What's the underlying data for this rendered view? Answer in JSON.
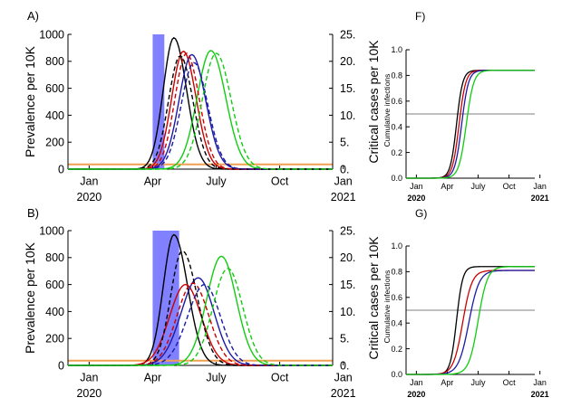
{
  "chart_data": [
    {
      "id": "A",
      "type": "line",
      "panel_label": "A)",
      "ylabel": "Prevalence per 10K",
      "y2label": "Critical cases per 10K",
      "ylim": [
        0,
        1000
      ],
      "y2lim": [
        0,
        25
      ],
      "yticks": [
        "0",
        "200",
        "400",
        "600",
        "800",
        "1000"
      ],
      "y2ticks": [
        "0.",
        "5.",
        "10.",
        "15.",
        "20.",
        "25."
      ],
      "xlim": [
        0,
        12.5
      ],
      "xticks": [
        {
          "x": 1,
          "label": "Jan"
        },
        {
          "x": 4,
          "label": "Apr"
        },
        {
          "x": 7,
          "label": "July"
        },
        {
          "x": 10,
          "label": "Oct"
        },
        {
          "x": 13,
          "label": "Jan"
        }
      ],
      "year_labels": [
        {
          "x": 1,
          "label": "2020"
        },
        {
          "x": 13,
          "label": "2021"
        }
      ],
      "intervention": [
        4.0,
        4.55
      ],
      "capacity_line": 35,
      "series": [
        {
          "name": "black solid",
          "color": "#000000",
          "dash": false,
          "peak_x": 5.0,
          "peak": 975,
          "rise": 0.5,
          "fall": 0.6
        },
        {
          "name": "red solid",
          "color": "#cc0000",
          "dash": false,
          "peak_x": 5.45,
          "peak": 875,
          "rise": 0.55,
          "fall": 0.6
        },
        {
          "name": "blue solid",
          "color": "#1a1aa6",
          "dash": false,
          "peak_x": 5.85,
          "peak": 850,
          "rise": 0.6,
          "fall": 0.65
        },
        {
          "name": "green solid",
          "color": "#11cc11",
          "dash": false,
          "peak_x": 6.75,
          "peak": 880,
          "rise": 0.65,
          "fall": 0.7
        },
        {
          "name": "black dashed",
          "color": "#000000",
          "dash": true,
          "peak_x": 5.3,
          "peak": 840,
          "rise": 0.55,
          "fall": 0.6
        },
        {
          "name": "red dashed",
          "color": "#cc0000",
          "dash": true,
          "peak_x": 5.6,
          "peak": 860,
          "rise": 0.55,
          "fall": 0.6
        },
        {
          "name": "blue dashed",
          "color": "#1a1aa6",
          "dash": true,
          "peak_x": 5.95,
          "peak": 790,
          "rise": 0.6,
          "fall": 0.65
        },
        {
          "name": "green dashed",
          "color": "#11cc11",
          "dash": true,
          "peak_x": 7.0,
          "peak": 860,
          "rise": 0.65,
          "fall": 0.7
        }
      ]
    },
    {
      "id": "B",
      "type": "line",
      "panel_label": "B)",
      "ylabel": "Prevalence per 10K",
      "y2label": "Critical cases per 10K",
      "ylim": [
        0,
        1000
      ],
      "y2lim": [
        0,
        25
      ],
      "yticks": [
        "0",
        "200",
        "400",
        "600",
        "800",
        "1000"
      ],
      "y2ticks": [
        "0.",
        "5.",
        "10.",
        "15.",
        "20.",
        "25."
      ],
      "xlim": [
        0,
        12.5
      ],
      "xticks": [
        {
          "x": 1,
          "label": "Jan"
        },
        {
          "x": 4,
          "label": "Apr"
        },
        {
          "x": 7,
          "label": "July"
        },
        {
          "x": 10,
          "label": "Oct"
        },
        {
          "x": 13,
          "label": "Jan"
        }
      ],
      "year_labels": [
        {
          "x": 1,
          "label": "2020"
        },
        {
          "x": 13,
          "label": "2021"
        }
      ],
      "intervention": [
        4.0,
        5.25
      ],
      "capacity_line": 35,
      "series": [
        {
          "name": "black solid",
          "color": "#000000",
          "dash": false,
          "peak_x": 5.0,
          "peak": 970,
          "rise": 0.5,
          "fall": 0.65
        },
        {
          "name": "red solid",
          "color": "#cc0000",
          "dash": false,
          "peak_x": 5.55,
          "peak": 600,
          "rise": 0.75,
          "fall": 0.75
        },
        {
          "name": "blue solid",
          "color": "#1a1aa6",
          "dash": false,
          "peak_x": 6.15,
          "peak": 650,
          "rise": 0.8,
          "fall": 0.75
        },
        {
          "name": "green solid",
          "color": "#11cc11",
          "dash": false,
          "peak_x": 7.25,
          "peak": 810,
          "rise": 0.7,
          "fall": 0.7
        },
        {
          "name": "black dashed",
          "color": "#000000",
          "dash": true,
          "peak_x": 5.4,
          "peak": 850,
          "rise": 0.55,
          "fall": 0.7
        },
        {
          "name": "red dashed",
          "color": "#cc0000",
          "dash": true,
          "peak_x": 5.9,
          "peak": 610,
          "rise": 0.75,
          "fall": 0.75
        },
        {
          "name": "blue dashed",
          "color": "#1a1aa6",
          "dash": true,
          "peak_x": 6.45,
          "peak": 600,
          "rise": 0.8,
          "fall": 0.75
        },
        {
          "name": "green dashed",
          "color": "#11cc11",
          "dash": true,
          "peak_x": 7.55,
          "peak": 720,
          "rise": 0.7,
          "fall": 0.7
        }
      ]
    },
    {
      "id": "F",
      "type": "line",
      "panel_label": "F)",
      "ylabel": "Cumulative infections",
      "ylim": [
        0,
        1.0
      ],
      "yticks": [
        "0.0",
        "0.2",
        "0.4",
        "0.6",
        "0.8",
        "1.0"
      ],
      "xlim": [
        0,
        12.5
      ],
      "xticks": [
        {
          "x": 1,
          "label": "Jan"
        },
        {
          "x": 4,
          "label": "Apr"
        },
        {
          "x": 7,
          "label": "July"
        },
        {
          "x": 10,
          "label": "Oct"
        },
        {
          "x": 13,
          "label": "Jan"
        }
      ],
      "year_labels": [
        {
          "x": 1,
          "label": "2020"
        },
        {
          "x": 13,
          "label": "2021"
        }
      ],
      "reference_line": 0.5,
      "series": [
        {
          "name": "black",
          "color": "#000000",
          "final": 0.84,
          "mid_x": 4.9,
          "width": 0.3
        },
        {
          "name": "red",
          "color": "#cc0000",
          "final": 0.84,
          "mid_x": 5.15,
          "width": 0.32
        },
        {
          "name": "blue",
          "color": "#1a1aa6",
          "final": 0.84,
          "mid_x": 5.4,
          "width": 0.33
        },
        {
          "name": "green",
          "color": "#11cc11",
          "final": 0.84,
          "mid_x": 5.85,
          "width": 0.36
        }
      ]
    },
    {
      "id": "G",
      "type": "line",
      "panel_label": "G)",
      "ylabel": "Cumulative infections",
      "ylim": [
        0,
        1.0
      ],
      "yticks": [
        "0.0",
        "0.2",
        "0.4",
        "0.6",
        "0.8",
        "1.0"
      ],
      "xlim": [
        0,
        12.5
      ],
      "xticks": [
        {
          "x": 1,
          "label": "Jan"
        },
        {
          "x": 4,
          "label": "Apr"
        },
        {
          "x": 7,
          "label": "July"
        },
        {
          "x": 10,
          "label": "Oct"
        },
        {
          "x": 13,
          "label": "Jan"
        }
      ],
      "year_labels": [
        {
          "x": 1,
          "label": "2020"
        },
        {
          "x": 13,
          "label": "2021"
        }
      ],
      "reference_line": 0.5,
      "series": [
        {
          "name": "black",
          "color": "#000000",
          "final": 0.84,
          "mid_x": 4.9,
          "width": 0.3
        },
        {
          "name": "red",
          "color": "#cc0000",
          "final": 0.81,
          "mid_x": 5.5,
          "width": 0.45
        },
        {
          "name": "blue",
          "color": "#1a1aa6",
          "final": 0.81,
          "mid_x": 6.1,
          "width": 0.5
        },
        {
          "name": "green",
          "color": "#11cc11",
          "final": 0.84,
          "mid_x": 7.0,
          "width": 0.45
        }
      ]
    }
  ]
}
